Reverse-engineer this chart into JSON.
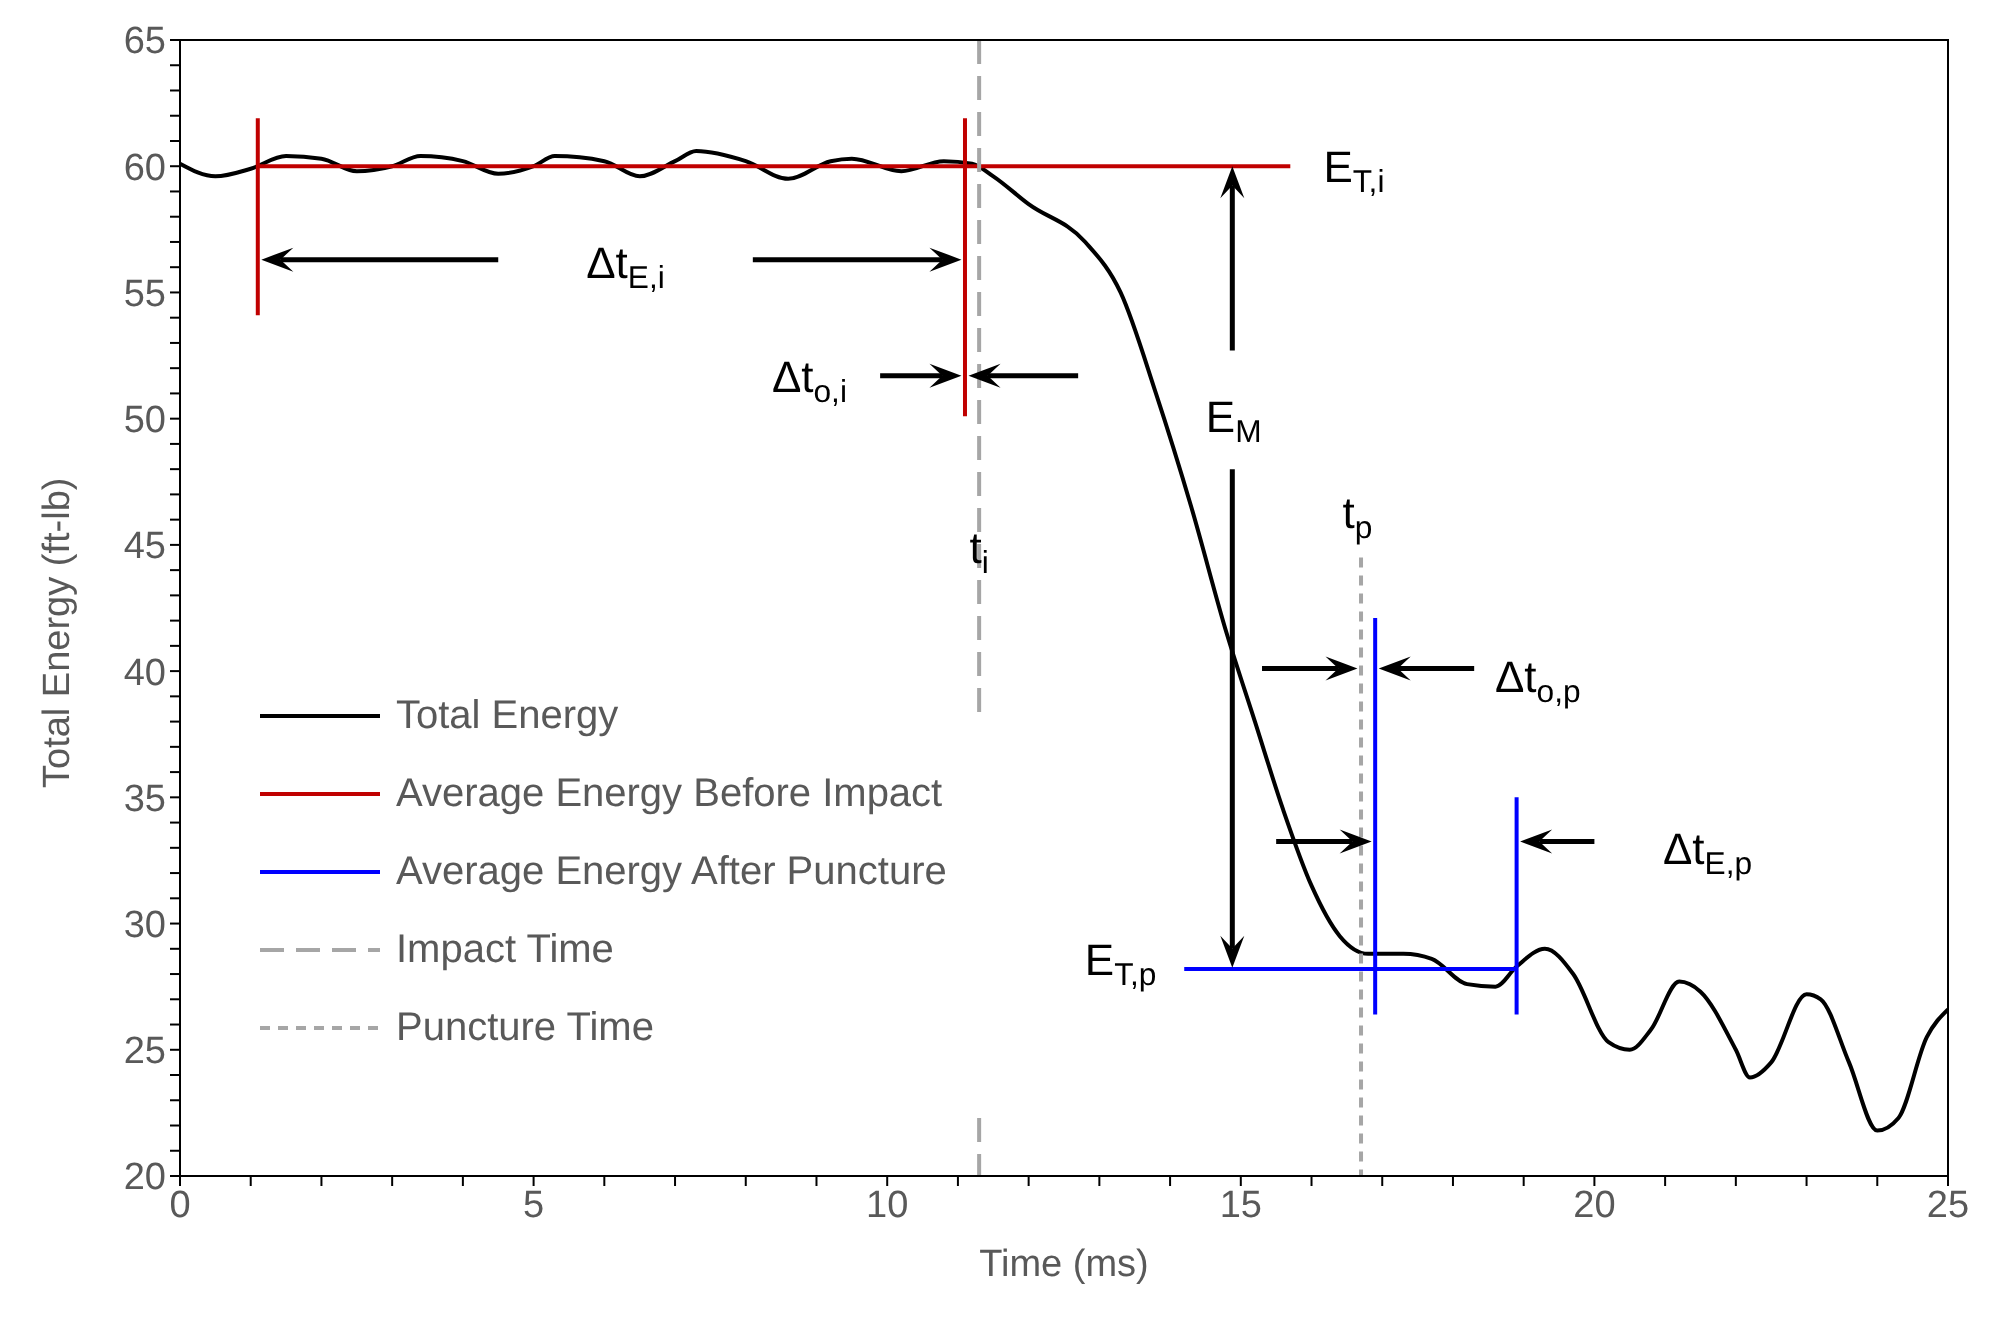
{
  "chart_data": {
    "type": "line",
    "xlabel": "Time (ms)",
    "ylabel": "Total Energy (ft-lb)",
    "xlim": [
      0,
      25
    ],
    "ylim": [
      20,
      65
    ],
    "xticks": [
      0,
      {
        "value": 1,
        "label": null
      },
      {
        "value": 2,
        "label": null
      },
      {
        "value": 3,
        "label": null
      },
      {
        "value": 4,
        "label": null
      },
      5,
      {
        "value": 6,
        "label": null
      },
      {
        "value": 7,
        "label": null
      },
      {
        "value": 8,
        "label": null
      },
      {
        "value": 9,
        "label": null
      },
      10,
      {
        "value": 11,
        "label": null
      },
      {
        "value": 12,
        "label": null
      },
      {
        "value": 13,
        "label": null
      },
      {
        "value": 14,
        "label": null
      },
      15,
      {
        "value": 16,
        "label": null
      },
      {
        "value": 17,
        "label": null
      },
      {
        "value": 18,
        "label": null
      },
      {
        "value": 19,
        "label": null
      },
      20,
      {
        "value": 21,
        "label": null
      },
      {
        "value": 22,
        "label": null
      },
      {
        "value": 23,
        "label": null
      },
      {
        "value": 24,
        "label": null
      },
      25
    ],
    "yticks": [
      20,
      {
        "value": 21,
        "label": null
      },
      {
        "value": 22,
        "label": null
      },
      {
        "value": 23,
        "label": null
      },
      {
        "value": 24,
        "label": null
      },
      25,
      {
        "value": 26,
        "label": null
      },
      {
        "value": 27,
        "label": null
      },
      {
        "value": 28,
        "label": null
      },
      {
        "value": 29,
        "label": null
      },
      30,
      {
        "value": 31,
        "label": null
      },
      {
        "value": 32,
        "label": null
      },
      {
        "value": 33,
        "label": null
      },
      {
        "value": 34,
        "label": null
      },
      35,
      {
        "value": 36,
        "label": null
      },
      {
        "value": 37,
        "label": null
      },
      {
        "value": 38,
        "label": null
      },
      {
        "value": 39,
        "label": null
      },
      40,
      {
        "value": 41,
        "label": null
      },
      {
        "value": 42,
        "label": null
      },
      {
        "value": 43,
        "label": null
      },
      {
        "value": 44,
        "label": null
      },
      45,
      {
        "value": 46,
        "label": null
      },
      {
        "value": 47,
        "label": null
      },
      {
        "value": 48,
        "label": null
      },
      {
        "value": 49,
        "label": null
      },
      50,
      {
        "value": 51,
        "label": null
      },
      {
        "value": 52,
        "label": null
      },
      {
        "value": 53,
        "label": null
      },
      {
        "value": 54,
        "label": null
      },
      55,
      {
        "value": 56,
        "label": null
      },
      {
        "value": 57,
        "label": null
      },
      {
        "value": 58,
        "label": null
      },
      {
        "value": 59,
        "label": null
      },
      60,
      {
        "value": 61,
        "label": null
      },
      {
        "value": 62,
        "label": null
      },
      {
        "value": 63,
        "label": null
      },
      {
        "value": 64,
        "label": null
      },
      65
    ],
    "grid": false,
    "legend": "bottom left",
    "marker": "none",
    "series": [
      {
        "name": "Total Energy",
        "color": "#000000",
        "line_style": "solid",
        "x": [
          0,
          0.5,
          1,
          1.5,
          2,
          2.5,
          3,
          3.4,
          4,
          4.5,
          5,
          5.3,
          6,
          6.5,
          7,
          7.3,
          8,
          8.6,
          9.2,
          9.5,
          10.2,
          10.8,
          11.2,
          11.5,
          12,
          12.8,
          13.3,
          13.8,
          14.3,
          14.8,
          15.2,
          15.6,
          16,
          16.4,
          16.8,
          17.3,
          17.7,
          18.2,
          18.6,
          18.9,
          19.3,
          19.7,
          20.2,
          20.5,
          20.8,
          21.2,
          21.5,
          22,
          22.2,
          22.5,
          23,
          23.2,
          23.6,
          24,
          24.3,
          24.7,
          25
        ],
        "values": [
          60.1,
          59.6,
          59.9,
          60.4,
          60.3,
          59.8,
          60,
          60.4,
          60.2,
          59.7,
          60,
          60.4,
          60.2,
          59.6,
          60.2,
          60.6,
          60.2,
          59.5,
          60.2,
          60.3,
          59.8,
          60.2,
          60.1,
          59.6,
          58.5,
          57,
          55,
          51,
          46.5,
          41.5,
          38,
          34.5,
          31.5,
          29.5,
          28.8,
          28.8,
          28.6,
          27.6,
          27.5,
          28.3,
          29,
          28,
          25.3,
          25,
          25.8,
          27.7,
          27.3,
          25,
          23.9,
          24.5,
          27.2,
          27,
          24.5,
          21.8,
          22.3,
          25.5,
          26.6
        ]
      },
      {
        "name": "Average Energy Before Impact",
        "color": "#c00000",
        "line_style": "solid",
        "x": [
          1.1,
          15.7
        ],
        "values": [
          60,
          60
        ]
      },
      {
        "name": "Average Energy After Puncture",
        "color": "#0000ff",
        "line_style": "solid",
        "x": [
          14.2,
          18.9
        ],
        "values": [
          28.2,
          28.2
        ]
      },
      {
        "name": "Impact Time",
        "color": "#a6a6a6",
        "line_style": "dashed",
        "x": [
          11.3,
          11.3
        ],
        "values": [
          65,
          38.2
        ]
      },
      {
        "name": "Puncture Time",
        "color": "#a6a6a6",
        "line_style": "dotted",
        "x": [
          16.7,
          16.7
        ],
        "values": [
          44.5,
          20
        ]
      },
      {
        "color": "#c00000",
        "line_style": "solid",
        "x": [
          1.1,
          1.1
        ],
        "values": [
          54.1,
          61.9
        ]
      },
      {
        "color": "#c00000",
        "line_style": "solid",
        "x": [
          11.1,
          11.1
        ],
        "values": [
          61.9,
          50.1
        ]
      },
      {
        "color": "#0000ff",
        "line_style": "solid",
        "x": [
          16.9,
          16.9
        ],
        "values": [
          42.1,
          26.4
        ]
      },
      {
        "color": "#0000ff",
        "line_style": "solid",
        "x": [
          18.9,
          18.9
        ],
        "values": [
          35,
          26.4
        ]
      },
      {
        "color": "#a6a6a6",
        "line_style": "dashed",
        "x": [
          11.3,
          11.3
        ],
        "values": [
          22.3,
          20
        ]
      }
    ],
    "annotations": [
      "Δt$_{E,i}$",
      "Δt$_{o,i}$",
      "E$_{T,i}$",
      "E$_{M}$",
      "t$_{i}$",
      "t$_{p}$",
      "Δt$_{o,p}$",
      "Δt$_{E,p}$",
      "E$_{T,p}$"
    ]
  }
}
